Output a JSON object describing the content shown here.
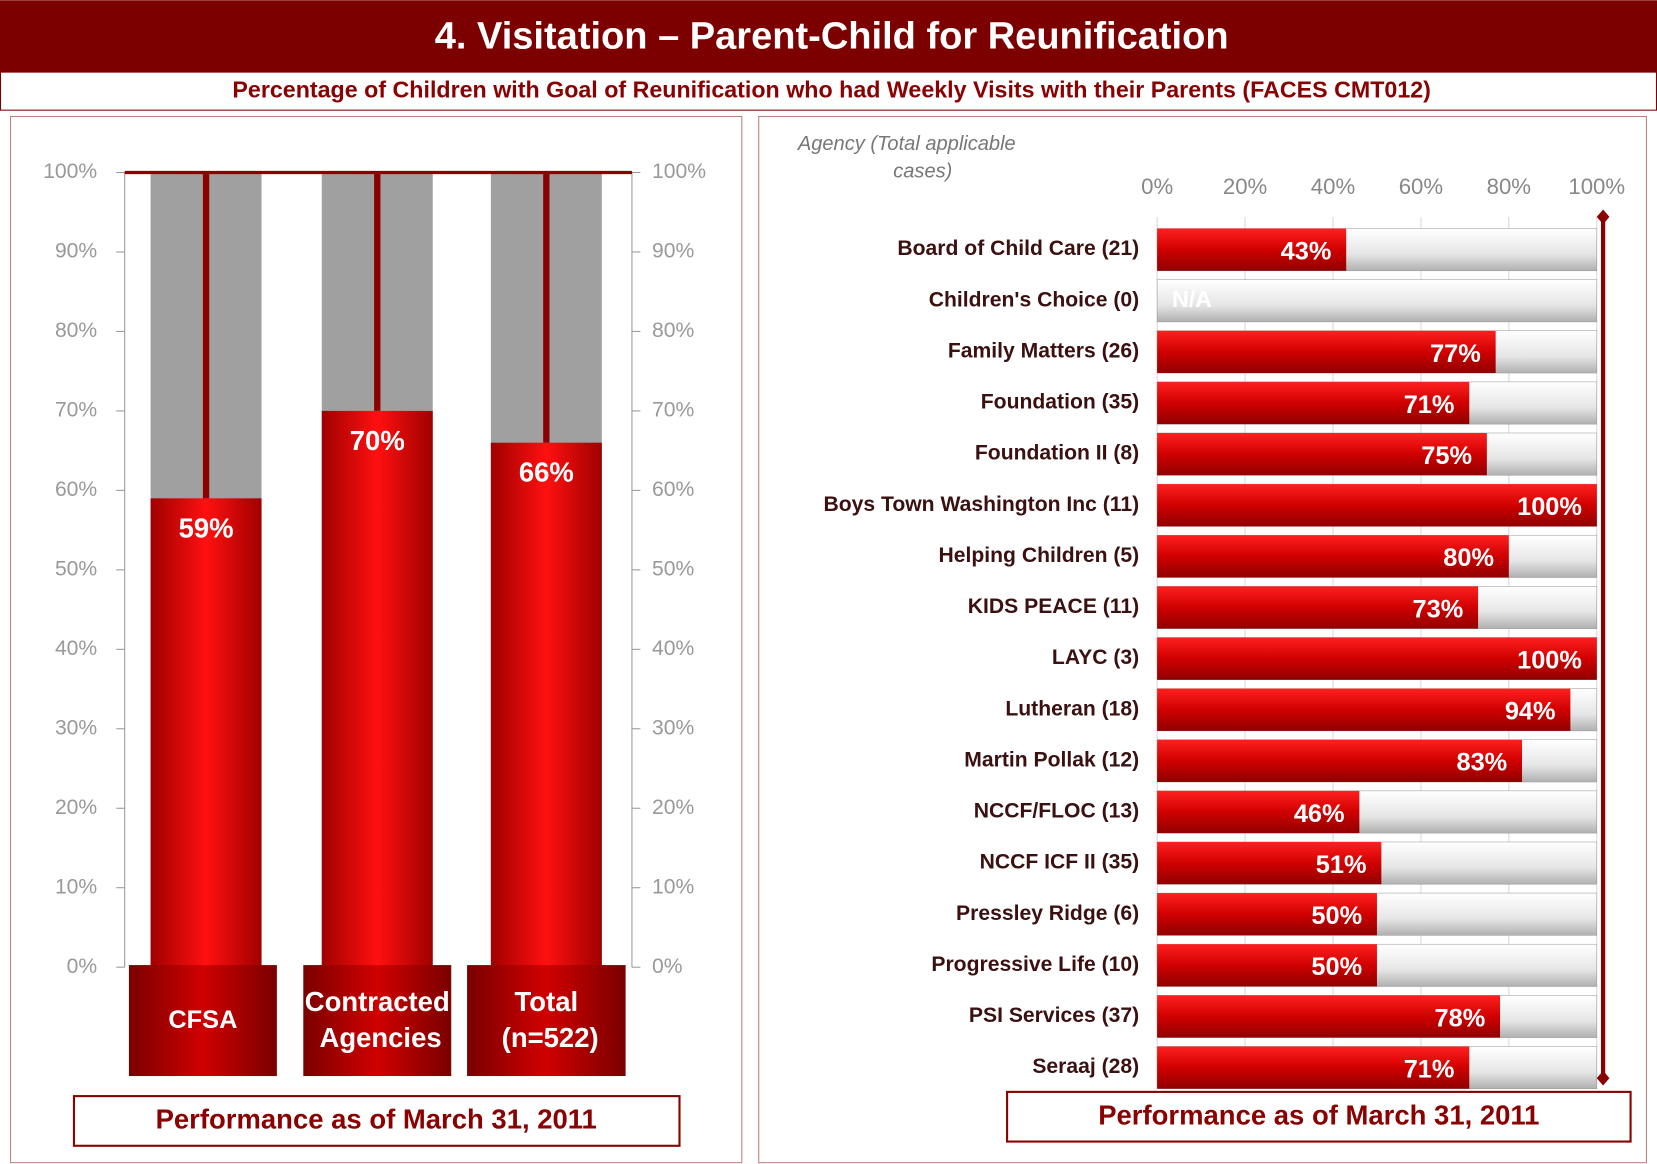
{
  "header": {
    "title": "4.  Visitation – Parent-Child for Reunification",
    "subtitle": "Percentage of Children with Goal of Reunification who had Weekly Visits with their Parents (FACES CMT012)"
  },
  "chart_data": [
    {
      "type": "bar",
      "categories": [
        "CFSA",
        "Contracted Agencies",
        "Total (n=522)"
      ],
      "values": [
        59,
        70,
        66
      ],
      "value_labels": [
        "59%",
        "70%",
        "66%"
      ],
      "color": "#e00000",
      "ylim": [
        0,
        100
      ],
      "yticks": [
        {
          "value": 0,
          "label": "0%"
        },
        {
          "value": 10,
          "label": "10%"
        },
        {
          "value": 20,
          "label": "20%"
        },
        {
          "value": 30,
          "label": "30%"
        },
        {
          "value": 40,
          "label": "40%"
        },
        {
          "value": 50,
          "label": "50%"
        },
        {
          "value": 60,
          "label": "60%"
        },
        {
          "value": 70,
          "label": "70%"
        },
        {
          "value": 80,
          "label": "80%"
        },
        {
          "value": 90,
          "label": "90%"
        },
        {
          "value": 100,
          "label": "100%"
        }
      ],
      "grid": false,
      "footer": "Performance as of March 31, 2011"
    },
    {
      "type": "barh",
      "y_label": "Agency (Total applicable cases)",
      "categories": [
        "Board of Child Care (21)",
        "Children's Choice (0)",
        "Family Matters (26)",
        "Foundation (35)",
        "Foundation II (8)",
        "Boys Town Washington Inc (11)",
        "Helping Children (5)",
        "KIDS PEACE (11)",
        "LAYC (3)",
        "Lutheran (18)",
        "Martin Pollak (12)",
        "NCCF/FLOC (13)",
        "NCCF ICF II (35)",
        "Pressley Ridge (6)",
        "Progressive Life (10)",
        "PSI Services (37)",
        "Seraaj (28)"
      ],
      "values": [
        43,
        null,
        77,
        71,
        75,
        100,
        80,
        73,
        100,
        94,
        83,
        46,
        51,
        50,
        50,
        78,
        71
      ],
      "value_labels": [
        "43%",
        "N/A",
        "77%",
        "71%",
        "75%",
        "100%",
        "80%",
        "73%",
        "100%",
        "94%",
        "83%",
        "46%",
        "51%",
        "50%",
        "50%",
        "78%",
        "71%"
      ],
      "color": "#e00000",
      "xlim": [
        0,
        100
      ],
      "xticks": [
        {
          "value": 0,
          "label": "0%"
        },
        {
          "value": 20,
          "label": "20%"
        },
        {
          "value": 40,
          "label": "40%"
        },
        {
          "value": 60,
          "label": "60%"
        },
        {
          "value": 80,
          "label": "80%"
        },
        {
          "value": 100,
          "label": "100%"
        }
      ],
      "grid": true,
      "footer": "Performance as of March 31, 2011"
    }
  ]
}
